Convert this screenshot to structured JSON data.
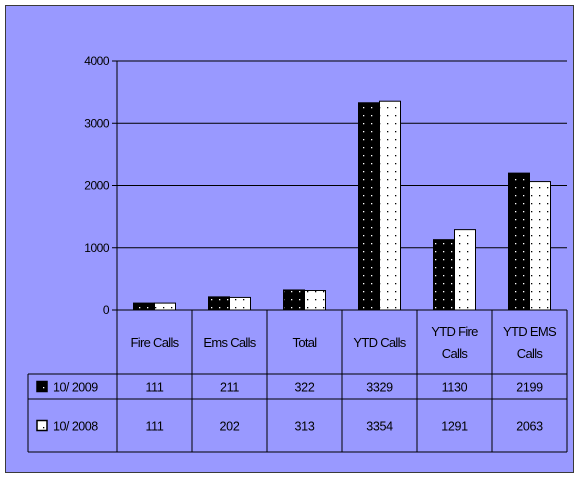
{
  "colors": {
    "background": "#9999ff",
    "series_2009": "#000000",
    "series_2008": "#ffffff",
    "gridline": "#000000"
  },
  "chart_data": {
    "type": "bar",
    "categories": [
      [
        "Fire Calls"
      ],
      [
        "Ems Calls"
      ],
      [
        "Total"
      ],
      [
        "YTD Calls"
      ],
      [
        "YTD Fire",
        "Calls"
      ],
      [
        "YTD EMS",
        "Calls"
      ]
    ],
    "series": [
      {
        "name": "10/2009",
        "pattern": "dotted-black",
        "values": [
          111,
          211,
          322,
          3329,
          1130,
          2199
        ]
      },
      {
        "name": "10/2008",
        "pattern": "dotted-white",
        "values": [
          111,
          202,
          313,
          3354,
          1291,
          2063
        ]
      }
    ],
    "ylim": [
      0,
      4000
    ],
    "yticks": [
      0,
      1000,
      2000,
      3000,
      4000
    ],
    "grid": true,
    "legend": "data-table",
    "data_table": true
  }
}
